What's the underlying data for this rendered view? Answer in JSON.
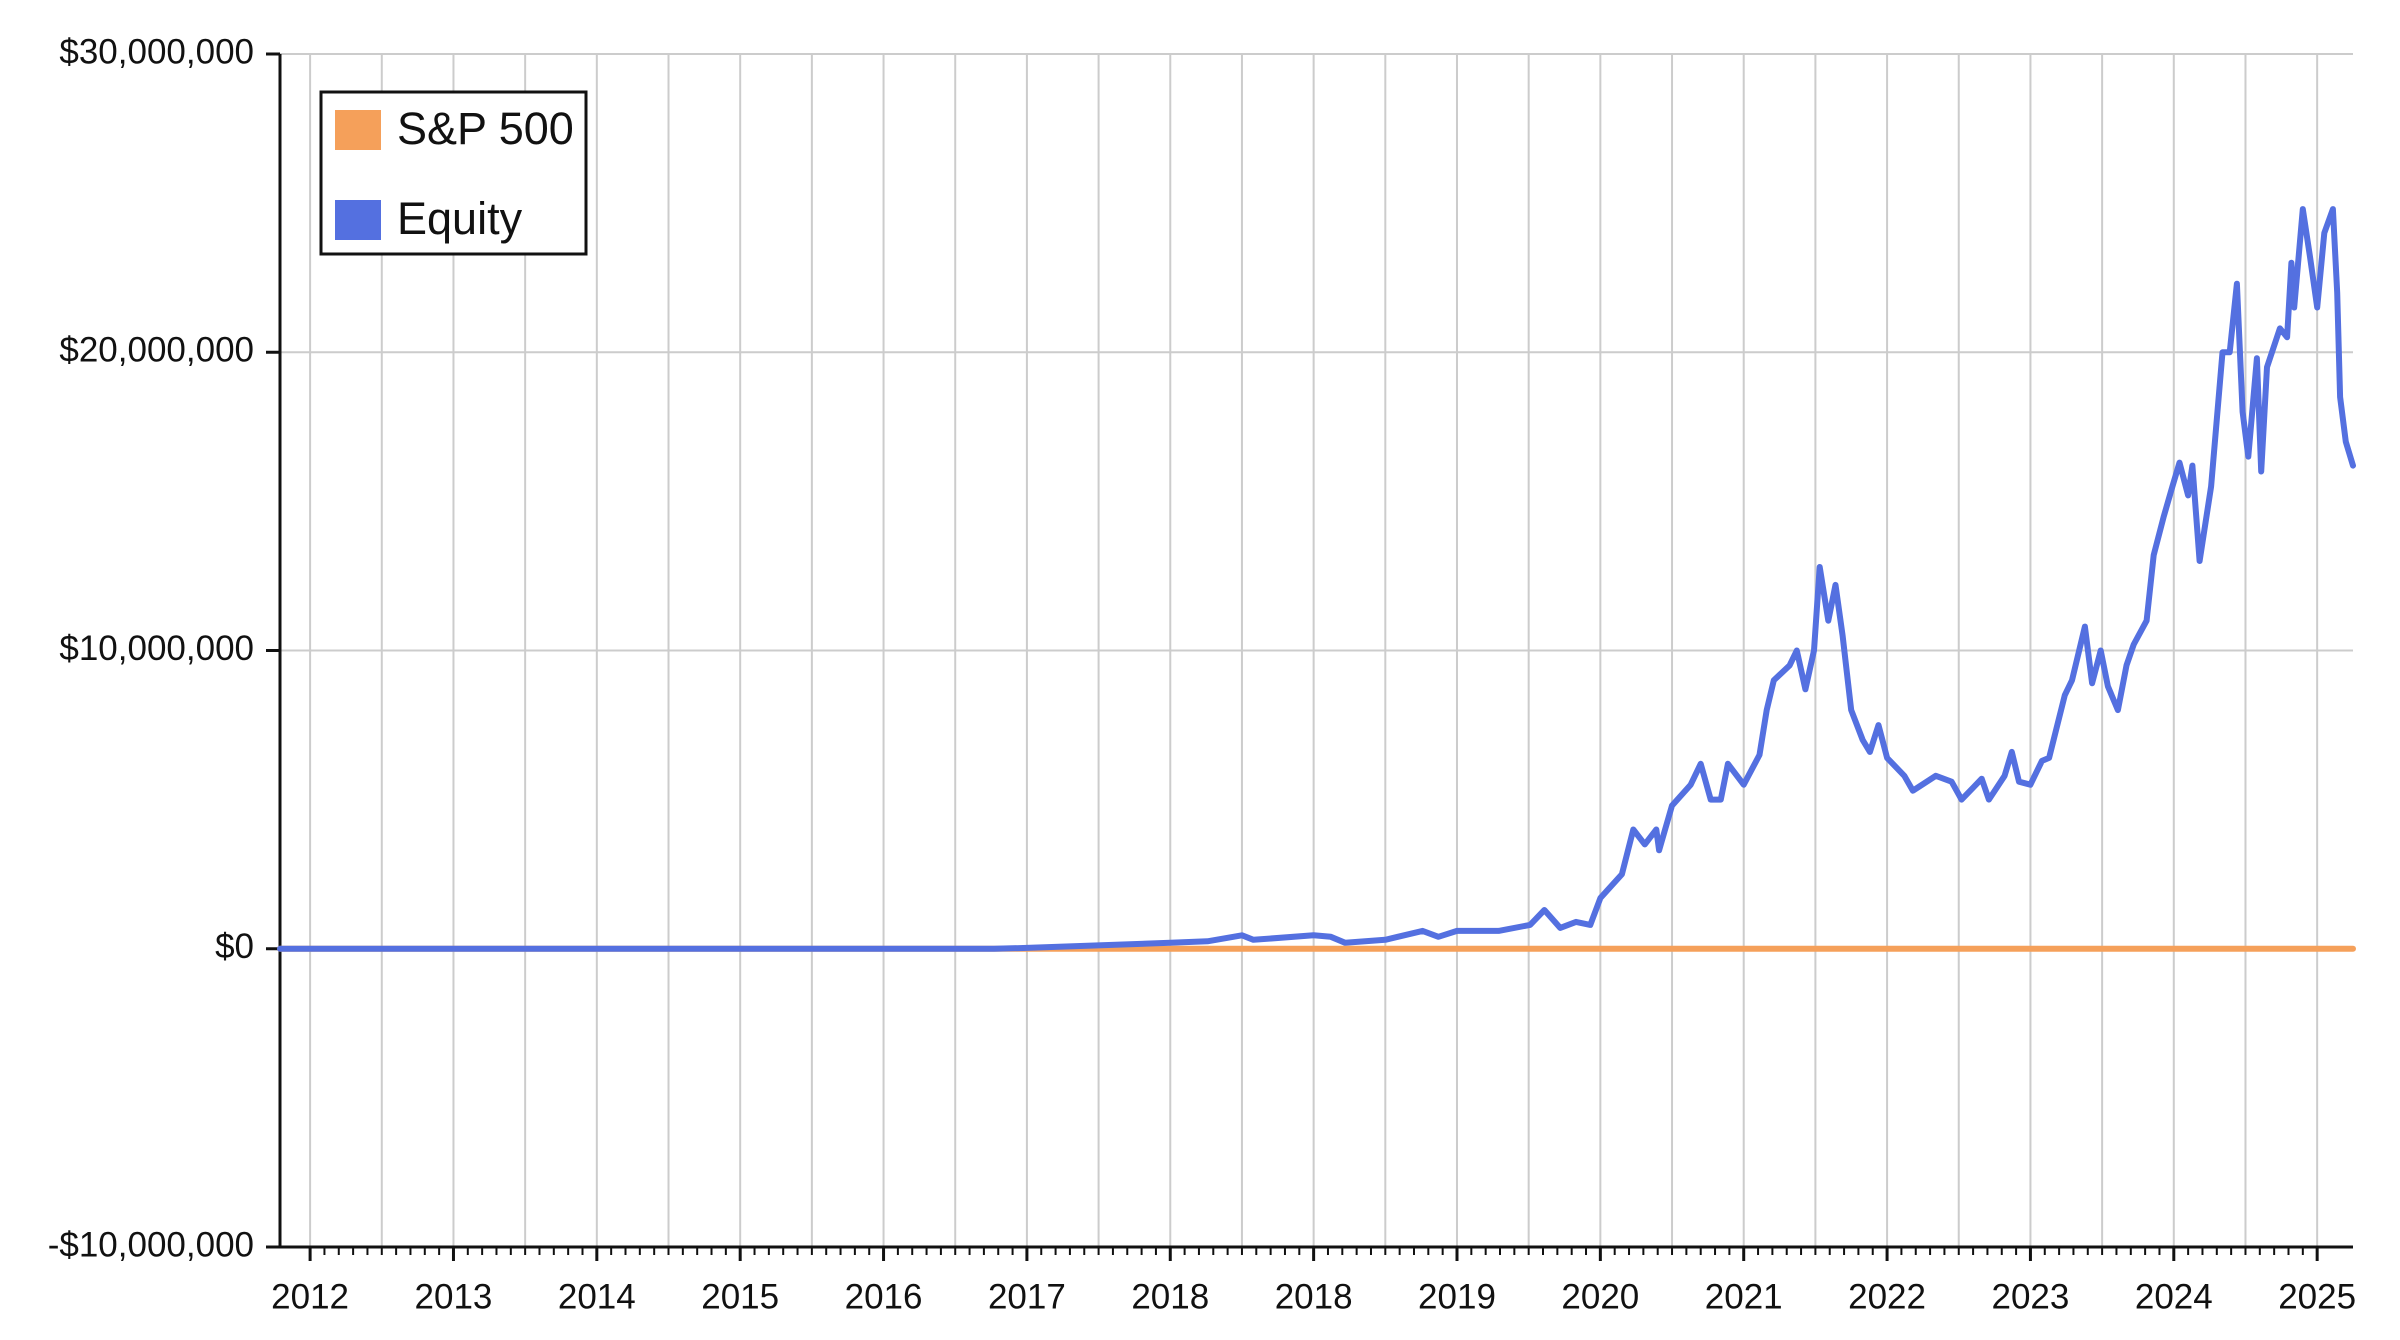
{
  "chart_data": {
    "type": "line",
    "legend": "upper left",
    "grid": true,
    "xlim": [
      -0.21,
      14.25
    ],
    "xticks": [
      {
        "value": 0,
        "label": "2012"
      },
      {
        "value": 1,
        "label": "2013"
      },
      {
        "value": 2,
        "label": "2014"
      },
      {
        "value": 3,
        "label": "2015"
      },
      {
        "value": 4,
        "label": "2016"
      },
      {
        "value": 5,
        "label": "2017"
      },
      {
        "value": 6,
        "label": "2018"
      },
      {
        "value": 7,
        "label": "2018"
      },
      {
        "value": 8,
        "label": "2019"
      },
      {
        "value": 9,
        "label": "2020"
      },
      {
        "value": 10,
        "label": "2021"
      },
      {
        "value": 11,
        "label": "2022"
      },
      {
        "value": 12,
        "label": "2023"
      },
      {
        "value": 13,
        "label": "2024"
      },
      {
        "value": 14,
        "label": "2025"
      }
    ],
    "ylim": [
      -10000000,
      30000000
    ],
    "yticks": [
      {
        "value": -10000000,
        "label": "-$10,000,000"
      },
      {
        "value": 0,
        "label": "$0"
      },
      {
        "value": 10000000,
        "label": "$10,000,000"
      },
      {
        "value": 20000000,
        "label": "$20,000,000"
      },
      {
        "value": 30000000,
        "label": "$30,000,000"
      }
    ],
    "series": [
      {
        "name": "S&P 500",
        "color": "#f5a05a",
        "x": [
          -0.21,
          14.25
        ],
        "values": [
          0,
          0
        ]
      },
      {
        "name": "Equity",
        "color": "#5470e0",
        "x": [
          -0.21,
          4.77,
          5.0,
          6.0,
          6.26,
          6.5,
          6.58,
          7.0,
          7.12,
          7.22,
          7.5,
          7.76,
          7.87,
          8.0,
          8.29,
          8.51,
          8.61,
          8.72,
          8.83,
          8.93,
          9.0,
          9.15,
          9.23,
          9.31,
          9.39,
          9.41,
          9.5,
          9.63,
          9.7,
          9.77,
          9.84,
          9.89,
          10.0,
          10.11,
          10.16,
          10.21,
          10.32,
          10.37,
          10.43,
          10.49,
          10.53,
          10.59,
          10.64,
          10.69,
          10.75,
          10.83,
          10.88,
          10.94,
          11.0,
          11.12,
          11.18,
          11.34,
          11.45,
          11.52,
          11.6,
          11.66,
          11.71,
          11.82,
          11.87,
          11.92,
          12.0,
          12.08,
          12.13,
          12.24,
          12.29,
          12.38,
          12.43,
          12.49,
          12.54,
          12.61,
          12.67,
          12.72,
          12.81,
          12.86,
          12.93,
          12.99,
          13.04,
          13.1,
          13.13,
          13.18,
          13.26,
          13.34,
          13.39,
          13.44,
          13.48,
          13.52,
          13.58,
          13.61,
          13.65,
          13.74,
          13.79,
          13.82,
          13.84,
          13.9,
          13.95,
          14.0,
          14.05,
          14.11,
          14.14,
          14.16,
          14.2,
          14.25
        ],
        "values": [
          0,
          0,
          30000,
          200000,
          250000,
          450000,
          300000,
          450000,
          400000,
          200000,
          300000,
          600000,
          400000,
          600000,
          600000,
          800000,
          1300000,
          700000,
          900000,
          800000,
          1700000,
          2500000,
          4000000,
          3500000,
          4000000,
          3300000,
          4800000,
          5500000,
          6200000,
          5000000,
          5000000,
          6200000,
          5500000,
          6500000,
          8000000,
          9000000,
          9500000,
          10000000,
          8700000,
          10000000,
          12800000,
          11000000,
          12200000,
          10500000,
          8000000,
          7000000,
          6600000,
          7500000,
          6400000,
          5800000,
          5300000,
          5800000,
          5600000,
          5000000,
          5400000,
          5700000,
          5000000,
          5800000,
          6600000,
          5600000,
          5500000,
          6300000,
          6400000,
          8500000,
          9000000,
          10800000,
          8900000,
          10000000,
          8800000,
          8000000,
          9500000,
          10200000,
          11000000,
          13200000,
          14500000,
          15500000,
          16300000,
          15200000,
          16200000,
          13000000,
          15500000,
          20000000,
          20000000,
          22300000,
          18000000,
          16500000,
          19800000,
          16000000,
          19500000,
          20800000,
          20500000,
          23000000,
          21500000,
          24800000,
          23200000,
          21500000,
          24000000,
          24800000,
          22000000,
          18500000,
          17000000,
          16200000
        ]
      }
    ]
  }
}
